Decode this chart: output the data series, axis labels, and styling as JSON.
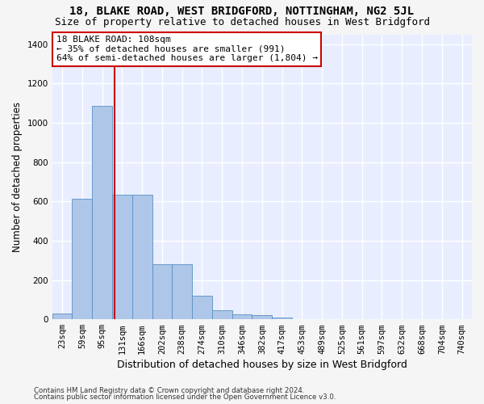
{
  "title": "18, BLAKE ROAD, WEST BRIDGFORD, NOTTINGHAM, NG2 5JL",
  "subtitle": "Size of property relative to detached houses in West Bridgford",
  "xlabel": "Distribution of detached houses by size in West Bridgford",
  "ylabel": "Number of detached properties",
  "footer_line1": "Contains HM Land Registry data © Crown copyright and database right 2024.",
  "footer_line2": "Contains public sector information licensed under the Open Government Licence v3.0.",
  "bin_labels": [
    "23sqm",
    "59sqm",
    "95sqm",
    "131sqm",
    "166sqm",
    "202sqm",
    "238sqm",
    "274sqm",
    "310sqm",
    "346sqm",
    "382sqm",
    "417sqm",
    "453sqm",
    "489sqm",
    "525sqm",
    "561sqm",
    "597sqm",
    "632sqm",
    "668sqm",
    "704sqm",
    "740sqm"
  ],
  "bar_values": [
    30,
    615,
    1085,
    635,
    635,
    280,
    280,
    120,
    45,
    25,
    20,
    10,
    2,
    2,
    2,
    2,
    2,
    2,
    2,
    2,
    2
  ],
  "bar_color": "#aec6e8",
  "bar_edge_color": "#5a8fc4",
  "ylim": [
    0,
    1450
  ],
  "yticks": [
    0,
    200,
    400,
    600,
    800,
    1000,
    1200,
    1400
  ],
  "vline_x": 2.63,
  "vline_color": "#cc0000",
  "annotation_text": "18 BLAKE ROAD: 108sqm\n← 35% of detached houses are smaller (991)\n64% of semi-detached houses are larger (1,804) →",
  "annotation_box_color": "#ffffff",
  "annotation_box_edgecolor": "#cc0000",
  "plot_bg_color": "#e8eeff",
  "fig_bg_color": "#f5f5f5",
  "grid_color": "#ffffff",
  "title_fontsize": 10,
  "subtitle_fontsize": 9,
  "xlabel_fontsize": 9,
  "ylabel_fontsize": 8.5,
  "tick_fontsize": 7.5,
  "annot_fontsize": 8
}
